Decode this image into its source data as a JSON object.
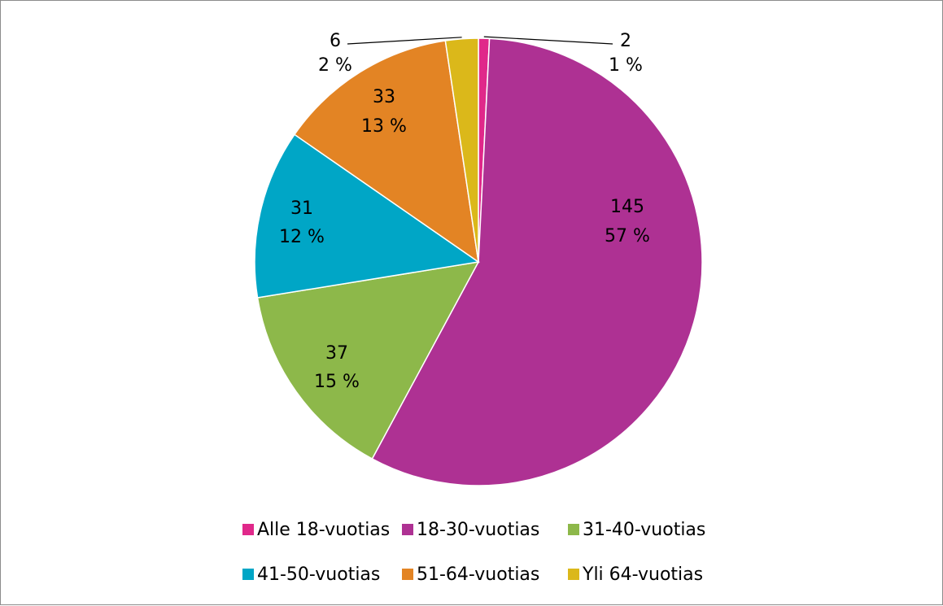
{
  "chart_data": {
    "type": "pie",
    "slices": [
      {
        "label": "Alle 18-vuotias",
        "value": 2,
        "percent": "1 %",
        "color": "#e0288a"
      },
      {
        "label": "18-30-vuotias",
        "value": 145,
        "percent": "57 %",
        "color": "#ae3193"
      },
      {
        "label": "31-40-vuotias",
        "value": 37,
        "percent": "15 %",
        "color": "#8db84a"
      },
      {
        "label": "41-50-vuotias",
        "value": 31,
        "percent": "12 %",
        "color": "#00a6c6"
      },
      {
        "label": "51-64-vuotias",
        "value": 33,
        "percent": "13 %",
        "color": "#e38424"
      },
      {
        "label": "Yli 64-vuotias",
        "value": 6,
        "percent": "2 %",
        "color": "#dbb81a"
      }
    ],
    "legend_position": "bottom"
  }
}
